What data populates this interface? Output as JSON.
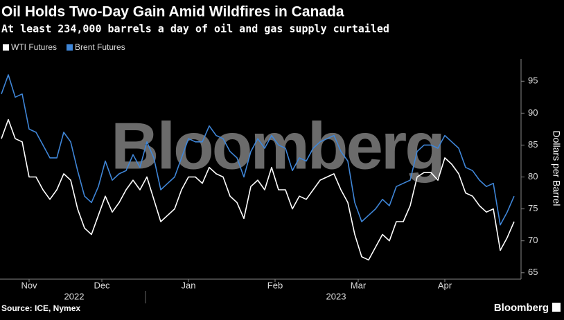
{
  "chart_data": {
    "type": "line",
    "title": "Oil Holds Two-Day Gain Amid Wildfires in Canada",
    "subtitle": "At least 234,000 barrels a day of oil and gas supply curtailed",
    "ylabel": "Dollars per Barrel",
    "source": "Source: ICE, Nymex",
    "watermark": "Bloomberg",
    "logo": "Bloomberg",
    "legend": "top-left",
    "xlim": [
      0,
      74
    ],
    "xticks": [
      {
        "value": 4,
        "label": "Nov"
      },
      {
        "value": 14.5,
        "label": "Dec"
      },
      {
        "value": 27,
        "label": "Jan"
      },
      {
        "value": 39.5,
        "label": "Feb"
      },
      {
        "value": 51.5,
        "label": "Mar"
      },
      {
        "value": 64,
        "label": "Apr"
      }
    ],
    "xgroups": [
      {
        "value": 10.5,
        "label": "2022"
      },
      {
        "value": 48.3,
        "label": "2023"
      }
    ],
    "ylim": [
      64,
      98.5
    ],
    "yticks": [
      65,
      70,
      75,
      80,
      85,
      90,
      95
    ],
    "series": [
      {
        "name": "WTI Futures",
        "color": "#ffffff",
        "values": [
          86,
          89,
          86,
          85.5,
          80,
          80,
          78,
          76.5,
          78,
          80.5,
          79.5,
          75,
          72,
          71,
          74,
          77,
          74.5,
          76,
          78,
          79.5,
          78,
          80,
          76.5,
          73,
          74,
          75,
          78,
          80,
          80,
          79,
          81.5,
          80.5,
          80,
          77,
          76,
          73.5,
          78.5,
          79.5,
          78,
          81.5,
          78,
          78,
          75,
          77,
          76.5,
          78,
          79.5,
          80,
          80.5,
          78,
          76,
          71,
          67.5,
          67,
          69,
          71,
          70,
          73,
          73,
          75.5,
          80,
          80.7,
          80.7,
          79.5,
          83,
          82,
          80.5,
          77.5,
          77,
          75.5,
          74.5,
          75,
          68.5,
          70.5,
          73
        ]
      },
      {
        "name": "Brent Futures",
        "color": "#3f86d8",
        "values": [
          93,
          96,
          92.5,
          93,
          87.5,
          87,
          85,
          83,
          83,
          87,
          85.5,
          81,
          77,
          76,
          78.5,
          82.5,
          79.5,
          80.5,
          81,
          83.5,
          81.5,
          85.5,
          83,
          78,
          79,
          80,
          83,
          86,
          85.5,
          85.5,
          88,
          86.5,
          86,
          84,
          83,
          80,
          84,
          86,
          84.5,
          86.5,
          85,
          84.5,
          81,
          83,
          82.5,
          84.5,
          85.5,
          86,
          86.5,
          84,
          82.5,
          76,
          73,
          74,
          75,
          76.5,
          75.5,
          78.5,
          79,
          79.5,
          84,
          85,
          85,
          84.5,
          86.5,
          85.5,
          84.5,
          81.5,
          81,
          79.5,
          78.5,
          79,
          72.5,
          74.5,
          77
        ]
      }
    ]
  }
}
